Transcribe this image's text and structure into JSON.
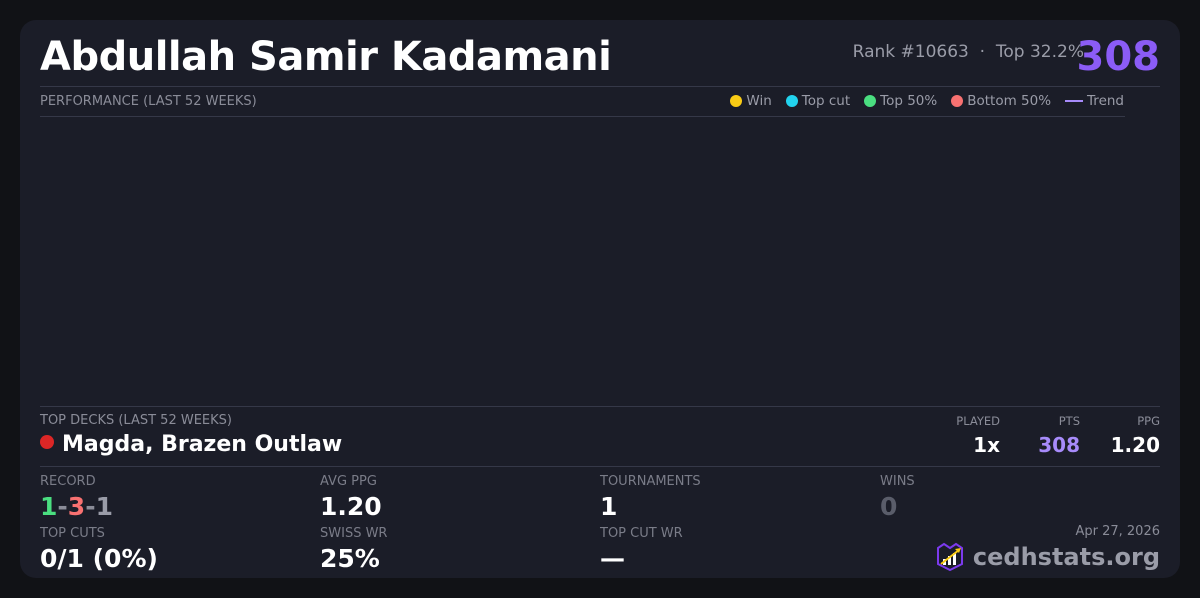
{
  "player": {
    "name": "Abdullah Samir Kadamani",
    "rank": "Rank #10663",
    "separator": "·",
    "top_pct": "Top 32.2%",
    "score": "308"
  },
  "performance": {
    "title": "PERFORMANCE (LAST 52 WEEKS)",
    "legend": [
      {
        "label": "Win",
        "color": "#facc15"
      },
      {
        "label": "Top cut",
        "color": "#22d3ee"
      },
      {
        "label": "Top 50%",
        "color": "#4ade80"
      },
      {
        "label": "Bottom 50%",
        "color": "#f87171"
      },
      {
        "label": "Trend",
        "color": "#a78bfa"
      }
    ]
  },
  "top_decks": {
    "title": "TOP DECKS (LAST 52 WEEKS)",
    "headers": {
      "played": "PLAYED",
      "pts": "PTS",
      "ppg": "PPG"
    },
    "decks": [
      {
        "name": "Magda, Brazen Outlaw",
        "color": "#dc2626",
        "played": "1x",
        "pts": "308",
        "ppg": "1.20"
      }
    ]
  },
  "stats": {
    "record": {
      "label": "RECORD",
      "wins": "1",
      "losses": "3",
      "draws": "1",
      "dash": "-"
    },
    "avg_ppg": {
      "label": "AVG PPG",
      "value": "1.20"
    },
    "tournaments": {
      "label": "TOURNAMENTS",
      "value": "1"
    },
    "wins": {
      "label": "WINS",
      "value": "0"
    },
    "top_cuts": {
      "label": "TOP CUTS",
      "value": "0/1 (0%)"
    },
    "swiss_wr": {
      "label": "SWISS WR",
      "value": "25%"
    },
    "top_cut_wr": {
      "label": "TOP CUT WR",
      "value": "—"
    }
  },
  "footer": {
    "date": "Apr 27, 2026",
    "brand": "cedhstats.org"
  }
}
